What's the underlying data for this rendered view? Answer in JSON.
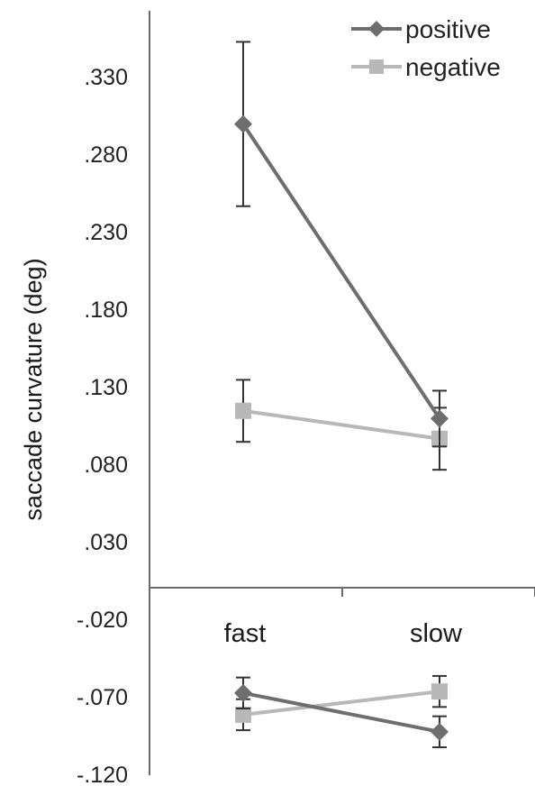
{
  "chart_data": {
    "type": "line",
    "ylabel": "saccade curvature (deg)",
    "categories": [
      "fast",
      "slow"
    ],
    "yticks": [
      ".330",
      ".280",
      ".230",
      ".180",
      ".130",
      ".080",
      ".030",
      "-.020",
      "-.070",
      "-.120"
    ],
    "ylim": [
      -0.12,
      0.37
    ],
    "grid": false,
    "legend_position": "top-right",
    "panels": [
      {
        "name": "upper",
        "series": [
          {
            "name": "positive",
            "marker": "diamond",
            "color": "#6e6e6e",
            "values": [
              0.3,
              0.11
            ],
            "error": [
              0.053,
              0.018
            ]
          },
          {
            "name": "negative",
            "marker": "square",
            "color": "#b8b8b8",
            "values": [
              0.115,
              0.097
            ],
            "error": [
              0.02,
              0.02
            ]
          }
        ]
      },
      {
        "name": "lower",
        "series": [
          {
            "name": "positive",
            "marker": "diamond",
            "color": "#6e6e6e",
            "values": [
              -0.067,
              -0.092
            ],
            "error": [
              0.01,
              0.01
            ]
          },
          {
            "name": "negative",
            "marker": "square",
            "color": "#b8b8b8",
            "values": [
              -0.081,
              -0.066
            ],
            "error": [
              0.01,
              0.01
            ]
          }
        ]
      }
    ]
  }
}
